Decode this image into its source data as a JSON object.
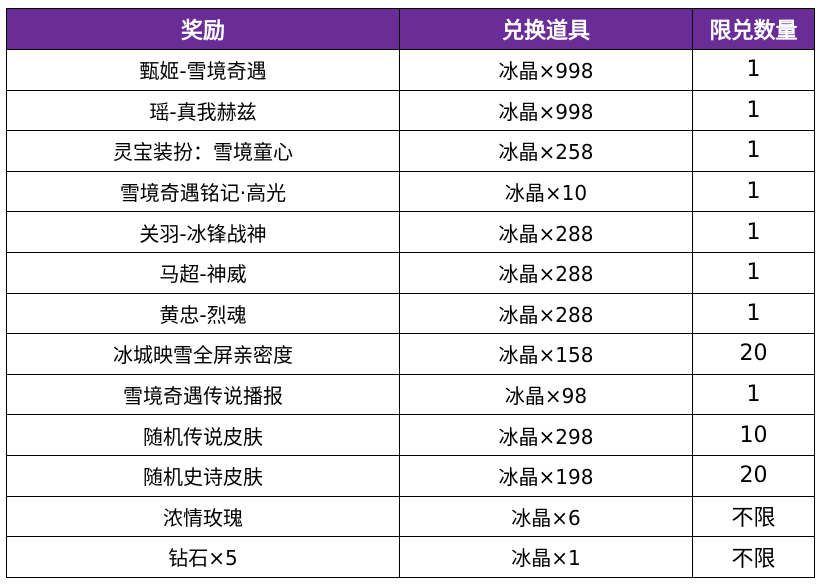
{
  "table": {
    "headers": {
      "reward": "奖励",
      "item": "兑换道具",
      "limit": "限兑数量"
    },
    "rows": [
      {
        "reward": "甄姬-雪境奇遇",
        "item": "冰晶×998",
        "limit": "1"
      },
      {
        "reward": "瑶-真我赫兹",
        "item": "冰晶×998",
        "limit": "1"
      },
      {
        "reward": "灵宝装扮：雪境童心",
        "item": "冰晶×258",
        "limit": "1"
      },
      {
        "reward": "雪境奇遇铭记·高光",
        "item": "冰晶×10",
        "limit": "1"
      },
      {
        "reward": "关羽-冰锋战神",
        "item": "冰晶×288",
        "limit": "1"
      },
      {
        "reward": "马超-神威",
        "item": "冰晶×288",
        "limit": "1"
      },
      {
        "reward": "黄忠-烈魂",
        "item": "冰晶×288",
        "limit": "1"
      },
      {
        "reward": "冰城映雪全屏亲密度",
        "item": "冰晶×158",
        "limit": "20"
      },
      {
        "reward": "雪境奇遇传说播报",
        "item": "冰晶×98",
        "limit": "1"
      },
      {
        "reward": "随机传说皮肤",
        "item": "冰晶×298",
        "limit": "10"
      },
      {
        "reward": "随机史诗皮肤",
        "item": "冰晶×198",
        "limit": "20"
      },
      {
        "reward": "浓情玫瑰",
        "item": "冰晶×6",
        "limit": "不限"
      },
      {
        "reward": "钻石×5",
        "item": "冰晶×1",
        "limit": "不限"
      }
    ]
  },
  "colors": {
    "header_background": "#6a2c97",
    "header_text": "#ffffff",
    "border": "#000000"
  }
}
